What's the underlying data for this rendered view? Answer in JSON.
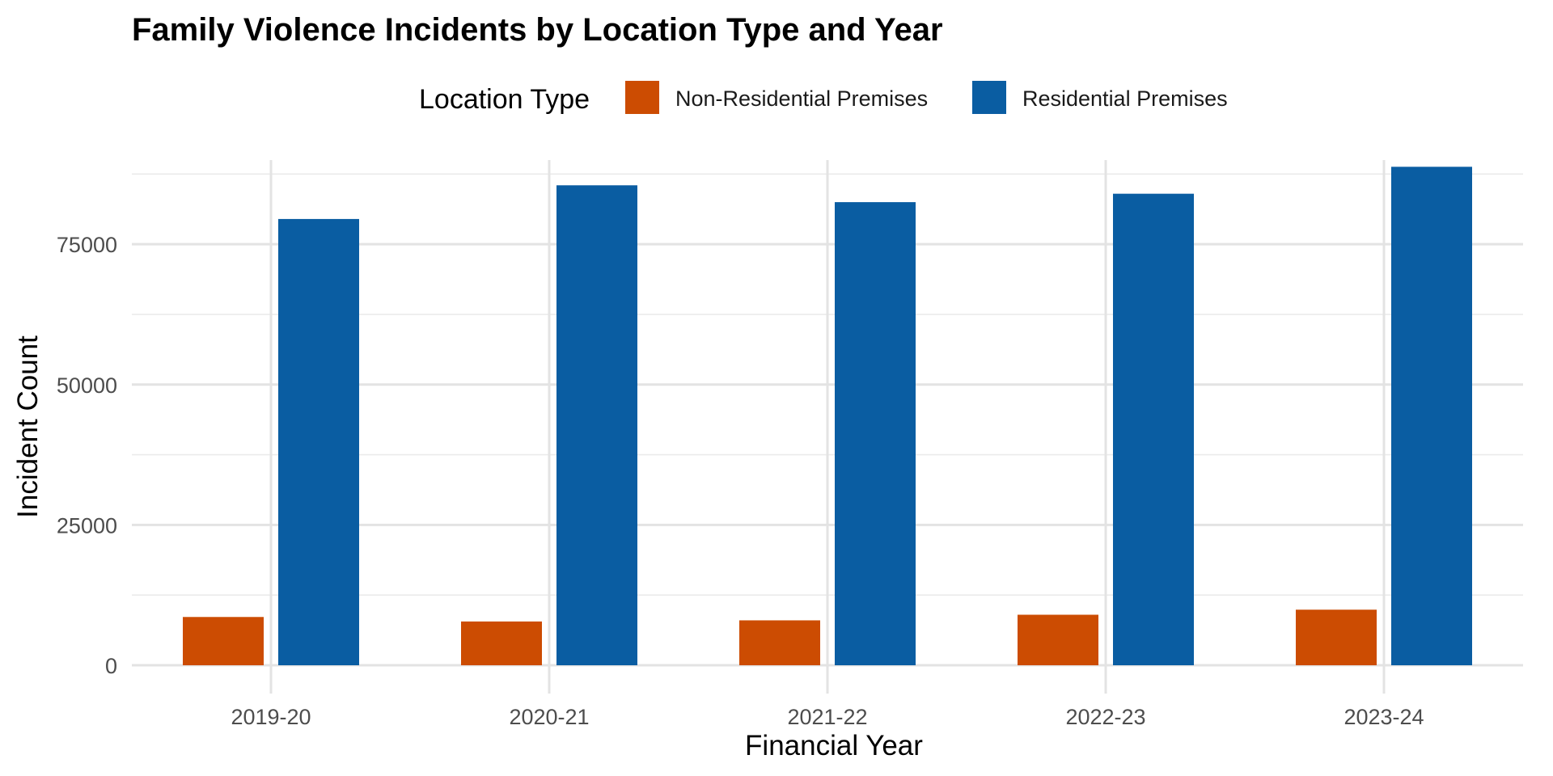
{
  "chart_data": {
    "type": "bar",
    "title": "Family Violence Incidents by Location Type and Year",
    "xlabel": "Financial Year",
    "ylabel": "Incident Count",
    "legend_title": "Location Type",
    "legend_position": "top",
    "categories": [
      "2019-20",
      "2020-21",
      "2021-22",
      "2022-23",
      "2023-24"
    ],
    "series": [
      {
        "name": "Non-Residential Premises",
        "color": "#CC4C02",
        "values": [
          8600,
          7800,
          8000,
          9000,
          9900
        ]
      },
      {
        "name": "Residential Premises",
        "color": "#0A5DA2",
        "values": [
          79500,
          85500,
          82500,
          84000,
          88800
        ]
      }
    ],
    "ylim": [
      0,
      90000
    ],
    "yticks": [
      "0",
      "25000",
      "50000",
      "75000"
    ],
    "grid": true
  }
}
